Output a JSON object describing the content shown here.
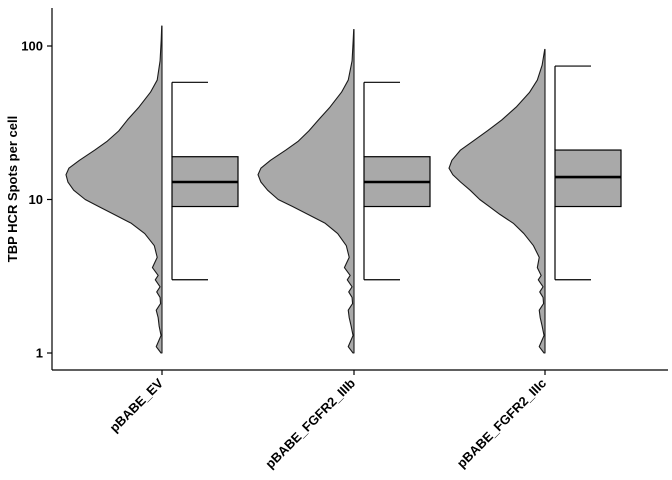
{
  "chart_data": {
    "type": "violin-box",
    "title": "",
    "xlabel": "",
    "ylabel": "TBP HCR Spots per cell",
    "y_scale": "log10",
    "ylim": [
      1,
      140
    ],
    "y_ticks": [
      {
        "value": 1,
        "label": "1"
      },
      {
        "value": 10,
        "label": "10"
      },
      {
        "value": 100,
        "label": "100"
      }
    ],
    "grid": false,
    "legend": "none",
    "colors": {
      "violin_fill": "#a9a9a9",
      "box_fill": "#a9a9a9",
      "line": "#000000"
    },
    "categories": [
      "pBABE_EV",
      "pBABE_FGFR2_IIIb",
      "pBABE_FGFR2_IIIc"
    ],
    "groups": [
      {
        "name": "pBABE_EV",
        "box": {
          "whisker_low": 3,
          "q1": 9,
          "median": 13,
          "q3": 19,
          "whisker_high": 58
        },
        "violin": {
          "min": 1,
          "max": 135,
          "density": [
            [
              1,
              0.01
            ],
            [
              1.1,
              0.06
            ],
            [
              1.3,
              0.01
            ],
            [
              1.5,
              0.03
            ],
            [
              1.7,
              0.04
            ],
            [
              1.9,
              0.06
            ],
            [
              2.1,
              0.015
            ],
            [
              2.3,
              0.02
            ],
            [
              2.5,
              0.055
            ],
            [
              2.7,
              0.02
            ],
            [
              3,
              0.07
            ],
            [
              3.2,
              0.04
            ],
            [
              3.6,
              0.1
            ],
            [
              4.2,
              0.05
            ],
            [
              5,
              0.08
            ],
            [
              6,
              0.18
            ],
            [
              7,
              0.32
            ],
            [
              8,
              0.5
            ],
            [
              9,
              0.66
            ],
            [
              10,
              0.8
            ],
            [
              11.5,
              0.92
            ],
            [
              13,
              0.98
            ],
            [
              14.5,
              1.0
            ],
            [
              16,
              0.97
            ],
            [
              18,
              0.86
            ],
            [
              21,
              0.7
            ],
            [
              24,
              0.57
            ],
            [
              28,
              0.45
            ],
            [
              33,
              0.36
            ],
            [
              40,
              0.24
            ],
            [
              50,
              0.12
            ],
            [
              60,
              0.05
            ],
            [
              80,
              0.02
            ],
            [
              110,
              0.008
            ],
            [
              135,
              0.003
            ]
          ]
        }
      },
      {
        "name": "pBABE_FGFR2_IIIb",
        "box": {
          "whisker_low": 3,
          "q1": 9,
          "median": 13,
          "q3": 19,
          "whisker_high": 58
        },
        "violin": {
          "min": 1,
          "max": 128,
          "density": [
            [
              1,
              0.01
            ],
            [
              1.1,
              0.06
            ],
            [
              1.3,
              0.01
            ],
            [
              1.5,
              0.03
            ],
            [
              1.7,
              0.05
            ],
            [
              1.9,
              0.06
            ],
            [
              2.1,
              0.015
            ],
            [
              2.3,
              0.02
            ],
            [
              2.5,
              0.055
            ],
            [
              2.7,
              0.02
            ],
            [
              3,
              0.07
            ],
            [
              3.2,
              0.04
            ],
            [
              3.6,
              0.1
            ],
            [
              4.2,
              0.05
            ],
            [
              5,
              0.08
            ],
            [
              6,
              0.17
            ],
            [
              7,
              0.3
            ],
            [
              8,
              0.48
            ],
            [
              9,
              0.64
            ],
            [
              10,
              0.79
            ],
            [
              11.5,
              0.9
            ],
            [
              13,
              0.97
            ],
            [
              14.5,
              1.0
            ],
            [
              16,
              0.97
            ],
            [
              18,
              0.87
            ],
            [
              21,
              0.71
            ],
            [
              24,
              0.58
            ],
            [
              28,
              0.47
            ],
            [
              33,
              0.37
            ],
            [
              40,
              0.25
            ],
            [
              50,
              0.13
            ],
            [
              60,
              0.06
            ],
            [
              80,
              0.02
            ],
            [
              110,
              0.008
            ],
            [
              128,
              0.003
            ]
          ]
        }
      },
      {
        "name": "pBABE_FGFR2_IIIc",
        "box": {
          "whisker_low": 3,
          "q1": 9,
          "median": 14,
          "q3": 21,
          "whisker_high": 74
        },
        "violin": {
          "min": 1,
          "max": 95,
          "density": [
            [
              1,
              0.01
            ],
            [
              1.1,
              0.06
            ],
            [
              1.3,
              0.01
            ],
            [
              1.5,
              0.03
            ],
            [
              1.7,
              0.05
            ],
            [
              1.9,
              0.06
            ],
            [
              2.1,
              0.015
            ],
            [
              2.3,
              0.02
            ],
            [
              2.5,
              0.055
            ],
            [
              2.7,
              0.02
            ],
            [
              3,
              0.07
            ],
            [
              3.2,
              0.04
            ],
            [
              3.6,
              0.08
            ],
            [
              4.2,
              0.06
            ],
            [
              5,
              0.12
            ],
            [
              6,
              0.22
            ],
            [
              7,
              0.33
            ],
            [
              8,
              0.47
            ],
            [
              9,
              0.58
            ],
            [
              10,
              0.68
            ],
            [
              11.5,
              0.78
            ],
            [
              13,
              0.88
            ],
            [
              14.5,
              0.96
            ],
            [
              16,
              1.0
            ],
            [
              18,
              0.97
            ],
            [
              21,
              0.88
            ],
            [
              24,
              0.75
            ],
            [
              28,
              0.6
            ],
            [
              33,
              0.45
            ],
            [
              40,
              0.3
            ],
            [
              50,
              0.16
            ],
            [
              60,
              0.08
            ],
            [
              75,
              0.03
            ],
            [
              95,
              0.003
            ]
          ]
        }
      }
    ]
  }
}
